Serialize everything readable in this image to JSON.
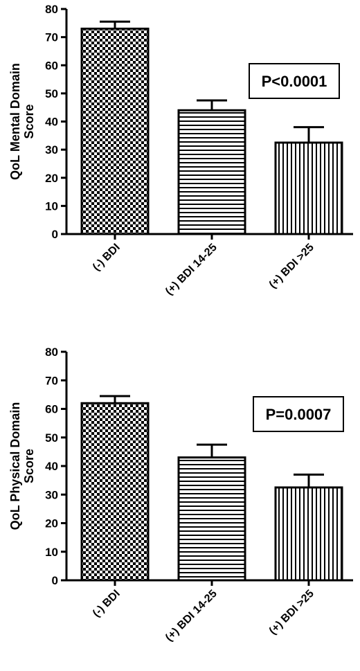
{
  "chart_data": [
    {
      "type": "bar",
      "categories": [
        "(-) BDI",
        "(+) BDI 14-25",
        "(+) BDI >25"
      ],
      "values": [
        73,
        44,
        32.5
      ],
      "error": [
        2.5,
        3.5,
        5.5
      ],
      "patterns": [
        "checker",
        "hlines",
        "vlines"
      ],
      "ylabel": "QoL Mental Domain Score",
      "ylabel_lines": [
        "QoL Mental Domain",
        "Score"
      ],
      "ylim": [
        0,
        80
      ],
      "yticks": [
        0,
        10,
        20,
        30,
        40,
        50,
        60,
        70,
        80
      ],
      "annotation": "P<0.0001",
      "grid": false
    },
    {
      "type": "bar",
      "categories": [
        "(-) BDI",
        "(+) BDI 14-25",
        "(+) BDI >25"
      ],
      "values": [
        62,
        43,
        32.5
      ],
      "error": [
        2.5,
        4.5,
        4.5
      ],
      "patterns": [
        "checker",
        "hlines",
        "vlines"
      ],
      "ylabel": "QoL Physical Domain Score",
      "ylabel_lines": [
        "QoL Physical Domain",
        "Score"
      ],
      "ylim": [
        0,
        80
      ],
      "yticks": [
        0,
        10,
        20,
        30,
        40,
        50,
        60,
        70,
        80
      ],
      "annotation": "P=0.0007",
      "grid": false
    }
  ]
}
